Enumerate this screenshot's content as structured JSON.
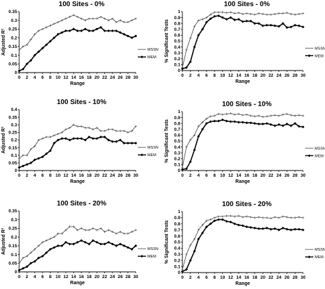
{
  "chart_data": [
    {
      "type": "line",
      "title": "100 Sites - 0%",
      "xlabel": "Range",
      "ylabel": "Adjusted R²",
      "ylim": [
        0,
        0.35
      ],
      "yticks": [
        "0",
        "0.05",
        "0.1",
        "0.15",
        "0.2",
        "0.25",
        "0.3",
        "0.35"
      ],
      "xlim": [
        0,
        30
      ],
      "xticks": [
        "0",
        "2",
        "4",
        "6",
        "8",
        "10",
        "12",
        "14",
        "16",
        "18",
        "20",
        "22",
        "24",
        "26",
        "28",
        "30"
      ],
      "x": [
        0,
        1,
        2,
        3,
        4,
        5,
        6,
        7,
        8,
        9,
        10,
        11,
        12,
        13,
        14,
        15,
        16,
        17,
        18,
        19,
        20,
        21,
        22,
        23,
        24,
        25,
        26,
        27,
        28,
        29,
        30
      ],
      "series": [
        {
          "name": "MSSN",
          "values": [
            0.13,
            0.15,
            0.16,
            0.19,
            0.22,
            0.24,
            0.25,
            0.26,
            0.27,
            0.28,
            0.29,
            0.3,
            0.31,
            0.32,
            0.33,
            0.32,
            0.31,
            0.3,
            0.31,
            0.31,
            0.31,
            0.32,
            0.31,
            0.3,
            0.31,
            0.29,
            0.3,
            0.29,
            0.29,
            0.3,
            0.31
          ]
        },
        {
          "name": "MEM",
          "values": [
            0.01,
            0.02,
            0.05,
            0.07,
            0.1,
            0.12,
            0.14,
            0.16,
            0.18,
            0.2,
            0.22,
            0.23,
            0.24,
            0.24,
            0.25,
            0.24,
            0.24,
            0.25,
            0.24,
            0.24,
            0.25,
            0.26,
            0.24,
            0.24,
            0.24,
            0.24,
            0.23,
            0.22,
            0.21,
            0.2,
            0.21
          ]
        }
      ],
      "legend": "right"
    },
    {
      "type": "line",
      "title": "100 Sites - 0%",
      "xlabel": "Range",
      "ylabel": "% Significant Tests",
      "ylim": [
        0,
        1
      ],
      "yticks": [
        "0",
        "0.1",
        "0.2",
        "0.3",
        "0.4",
        "0.5",
        "0.6",
        "0.7",
        "0.8",
        "0.9",
        "1"
      ],
      "xlim": [
        0,
        30
      ],
      "xticks": [
        "0",
        "2",
        "4",
        "6",
        "8",
        "10",
        "12",
        "14",
        "16",
        "18",
        "20",
        "22",
        "24",
        "26",
        "28",
        "30"
      ],
      "x": [
        0,
        1,
        2,
        3,
        4,
        5,
        6,
        7,
        8,
        9,
        10,
        11,
        12,
        13,
        14,
        15,
        16,
        17,
        18,
        19,
        20,
        21,
        22,
        23,
        24,
        25,
        26,
        27,
        28,
        29,
        30
      ],
      "series": [
        {
          "name": "MSSN",
          "values": [
            0.05,
            0.35,
            0.55,
            0.75,
            0.85,
            0.87,
            0.9,
            0.95,
            0.99,
            0.99,
            0.99,
            0.98,
            0.99,
            0.97,
            0.98,
            0.96,
            0.97,
            0.96,
            0.95,
            0.97,
            0.96,
            0.95,
            0.95,
            0.96,
            0.97,
            0.97,
            0.98,
            0.96,
            0.95,
            0.96,
            0.97
          ]
        },
        {
          "name": "MEM",
          "values": [
            0.03,
            0.05,
            0.15,
            0.4,
            0.6,
            0.7,
            0.82,
            0.88,
            0.92,
            0.93,
            0.9,
            0.87,
            0.9,
            0.86,
            0.87,
            0.83,
            0.84,
            0.84,
            0.8,
            0.8,
            0.76,
            0.77,
            0.77,
            0.76,
            0.75,
            0.8,
            0.73,
            0.74,
            0.77,
            0.76,
            0.74
          ]
        }
      ],
      "legend": "right"
    },
    {
      "type": "line",
      "title": "100 Sites - 10%",
      "xlabel": "Range",
      "ylabel": "Adjusted R²",
      "ylim": [
        0,
        0.4
      ],
      "yticks": [
        "0",
        "0.05",
        "0.1",
        "0.15",
        "0.2",
        "0.25",
        "0.3",
        "0.35",
        "0.4"
      ],
      "xlim": [
        0,
        30
      ],
      "xticks": [
        "0",
        "2",
        "4",
        "6",
        "8",
        "10",
        "12",
        "14",
        "16",
        "18",
        "20",
        "22",
        "24",
        "26",
        "28",
        "30"
      ],
      "x": [
        0,
        1,
        2,
        3,
        4,
        5,
        6,
        7,
        8,
        9,
        10,
        11,
        12,
        13,
        14,
        15,
        16,
        17,
        18,
        19,
        20,
        21,
        22,
        23,
        24,
        25,
        26,
        27,
        28,
        29,
        30
      ],
      "series": [
        {
          "name": "MSSN",
          "values": [
            0.08,
            0.1,
            0.1,
            0.14,
            0.16,
            0.2,
            0.21,
            0.22,
            0.22,
            0.23,
            0.24,
            0.25,
            0.27,
            0.28,
            0.3,
            0.29,
            0.29,
            0.28,
            0.28,
            0.27,
            0.28,
            0.26,
            0.26,
            0.27,
            0.27,
            0.26,
            0.26,
            0.26,
            0.25,
            0.26,
            0.29
          ]
        },
        {
          "name": "MEM",
          "values": [
            0.02,
            0.03,
            0.04,
            0.05,
            0.07,
            0.08,
            0.09,
            0.11,
            0.13,
            0.18,
            0.2,
            0.21,
            0.21,
            0.2,
            0.21,
            0.21,
            0.21,
            0.2,
            0.22,
            0.21,
            0.21,
            0.22,
            0.22,
            0.2,
            0.19,
            0.19,
            0.2,
            0.18,
            0.18,
            0.18,
            0.18
          ]
        }
      ],
      "legend": "right"
    },
    {
      "type": "line",
      "title": "100 Sites - 10%",
      "xlabel": "Range",
      "ylabel": "% Significant Tests",
      "ylim": [
        0,
        1
      ],
      "yticks": [
        "0",
        "0.1",
        "0.2",
        "0.3",
        "0.4",
        "0.5",
        "0.6",
        "0.7",
        "0.8",
        "0.9",
        "1"
      ],
      "xlim": [
        0,
        30
      ],
      "xticks": [
        "0",
        "2",
        "4",
        "6",
        "8",
        "10",
        "12",
        "14",
        "16",
        "18",
        "20",
        "22",
        "24",
        "26",
        "28",
        "30"
      ],
      "x": [
        0,
        1,
        2,
        3,
        4,
        5,
        6,
        7,
        8,
        9,
        10,
        11,
        12,
        13,
        14,
        15,
        16,
        17,
        18,
        19,
        20,
        21,
        22,
        23,
        24,
        25,
        26,
        27,
        28,
        29,
        30
      ],
      "series": [
        {
          "name": "MSSN",
          "values": [
            0.05,
            0.4,
            0.52,
            0.6,
            0.75,
            0.82,
            0.88,
            0.92,
            0.93,
            0.96,
            0.95,
            0.96,
            0.97,
            0.95,
            0.96,
            0.94,
            0.95,
            0.93,
            0.92,
            0.93,
            0.91,
            0.92,
            0.93,
            0.94,
            0.93,
            0.95,
            0.96,
            0.94,
            0.93,
            0.94,
            0.93
          ]
        },
        {
          "name": "MEM",
          "values": [
            0.02,
            0.03,
            0.15,
            0.35,
            0.58,
            0.7,
            0.8,
            0.83,
            0.84,
            0.84,
            0.86,
            0.84,
            0.83,
            0.83,
            0.82,
            0.82,
            0.81,
            0.81,
            0.8,
            0.79,
            0.79,
            0.8,
            0.78,
            0.76,
            0.78,
            0.76,
            0.79,
            0.76,
            0.8,
            0.75,
            0.74
          ]
        }
      ],
      "legend": "right"
    },
    {
      "type": "line",
      "title": "100 Sites - 20%",
      "xlabel": "Range",
      "ylabel": "Adjusted R²",
      "ylim": [
        0,
        0.35
      ],
      "yticks": [
        "0",
        "0.05",
        "0.1",
        "0.15",
        "0.2",
        "0.25",
        "0.3",
        "0.35"
      ],
      "xlim": [
        0,
        30
      ],
      "xticks": [
        "0",
        "2",
        "4",
        "6",
        "8",
        "10",
        "12",
        "14",
        "16",
        "18",
        "20",
        "22",
        "24",
        "26",
        "28",
        "30"
      ],
      "x": [
        0,
        1,
        2,
        3,
        4,
        5,
        6,
        7,
        8,
        9,
        10,
        11,
        12,
        13,
        14,
        15,
        16,
        17,
        18,
        19,
        20,
        21,
        22,
        23,
        24,
        25,
        26,
        27,
        28,
        29,
        30
      ],
      "series": [
        {
          "name": "MSSN",
          "values": [
            0.05,
            0.08,
            0.09,
            0.11,
            0.13,
            0.15,
            0.17,
            0.18,
            0.19,
            0.2,
            0.22,
            0.22,
            0.24,
            0.26,
            0.26,
            0.24,
            0.25,
            0.24,
            0.24,
            0.25,
            0.24,
            0.25,
            0.23,
            0.24,
            0.23,
            0.22,
            0.23,
            0.22,
            0.22,
            0.23,
            0.24
          ]
        },
        {
          "name": "MEM",
          "values": [
            0.01,
            0.02,
            0.03,
            0.05,
            0.06,
            0.08,
            0.09,
            0.11,
            0.13,
            0.14,
            0.15,
            0.15,
            0.17,
            0.16,
            0.16,
            0.17,
            0.18,
            0.17,
            0.16,
            0.18,
            0.17,
            0.16,
            0.16,
            0.17,
            0.16,
            0.15,
            0.16,
            0.15,
            0.14,
            0.13,
            0.15
          ]
        }
      ],
      "legend": "right"
    },
    {
      "type": "line",
      "title": "100 Sites - 20%",
      "xlabel": "Range",
      "ylabel": "% Significant Tests",
      "ylim": [
        0,
        1
      ],
      "yticks": [
        "0",
        "0.1",
        "0.2",
        "0.3",
        "0.4",
        "0.5",
        "0.6",
        "0.7",
        "0.8",
        "0.9",
        "1"
      ],
      "xlim": [
        0,
        30
      ],
      "xticks": [
        "0",
        "2",
        "4",
        "6",
        "8",
        "10",
        "12",
        "14",
        "16",
        "18",
        "20",
        "22",
        "24",
        "26",
        "28",
        "30"
      ],
      "x": [
        0,
        1,
        2,
        3,
        4,
        5,
        6,
        7,
        8,
        9,
        10,
        11,
        12,
        13,
        14,
        15,
        16,
        17,
        18,
        19,
        20,
        21,
        22,
        23,
        24,
        25,
        26,
        27,
        28,
        29,
        30
      ],
      "series": [
        {
          "name": "MSSN",
          "values": [
            0.05,
            0.3,
            0.45,
            0.55,
            0.7,
            0.78,
            0.85,
            0.87,
            0.9,
            0.92,
            0.92,
            0.93,
            0.93,
            0.92,
            0.93,
            0.91,
            0.92,
            0.91,
            0.9,
            0.91,
            0.9,
            0.9,
            0.89,
            0.91,
            0.9,
            0.92,
            0.91,
            0.9,
            0.9,
            0.91,
            0.9
          ]
        },
        {
          "name": "MEM",
          "values": [
            0.02,
            0.05,
            0.2,
            0.35,
            0.55,
            0.65,
            0.75,
            0.8,
            0.85,
            0.87,
            0.87,
            0.84,
            0.83,
            0.8,
            0.78,
            0.77,
            0.75,
            0.74,
            0.73,
            0.72,
            0.72,
            0.73,
            0.71,
            0.72,
            0.7,
            0.73,
            0.71,
            0.7,
            0.71,
            0.71,
            0.7
          ]
        }
      ],
      "legend": "right"
    }
  ]
}
